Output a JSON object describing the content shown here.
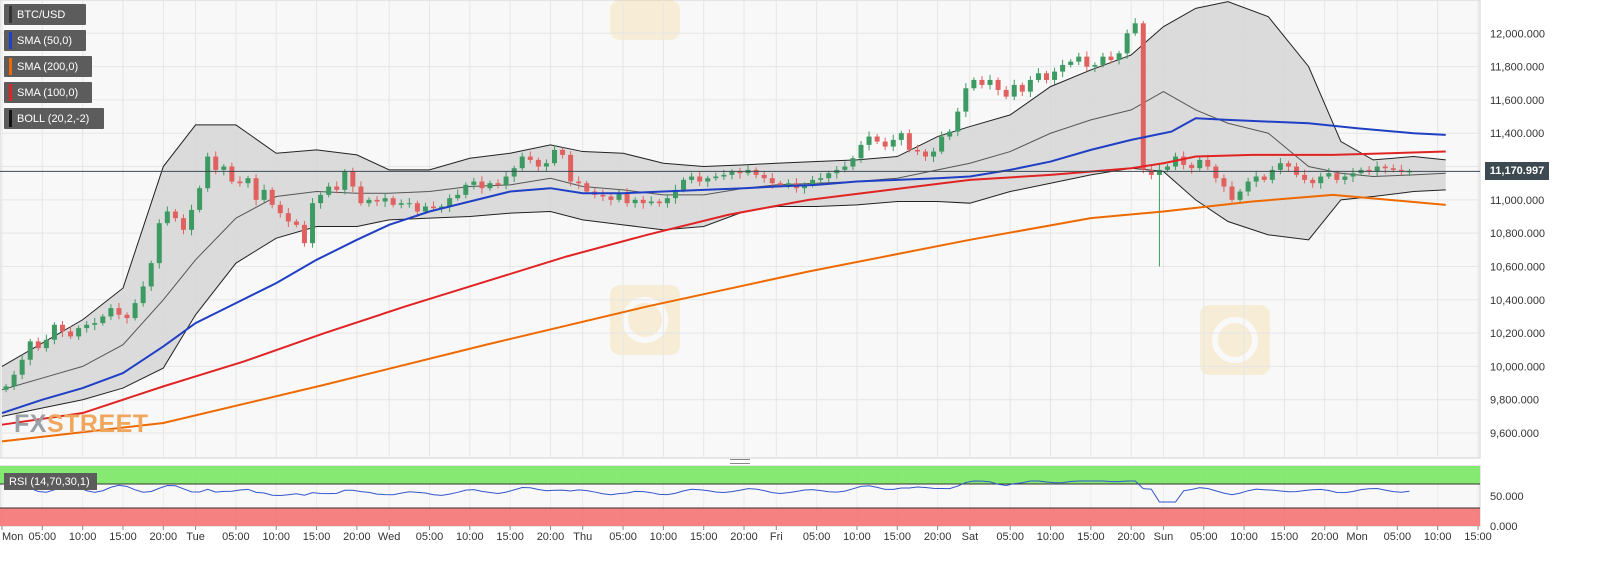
{
  "chart_data": {
    "type": "candlestick",
    "symbol": "BTC/USD",
    "last_price": "11,170.997",
    "y_axis": {
      "range": [
        9450000,
        12200000
      ],
      "ticks": [
        9600000,
        9800000,
        10000000,
        10200000,
        10400000,
        10600000,
        10800000,
        11000000,
        11200000,
        11400000,
        11600000,
        11800000,
        12000000
      ],
      "tick_labels": [
        "9,600.000",
        "9,800.000",
        "10,000.000",
        "10,200.000",
        "10,400.000",
        "10,600.000",
        "10,800.000",
        "11,000.000",
        "11,200.000",
        "11,400.000",
        "11,600.000",
        "11,800.000",
        "12,000.000"
      ]
    },
    "x_axis": {
      "hours_span": [
        0,
        178
      ],
      "tick_labels": [
        "Mon",
        "05:00",
        "10:00",
        "15:00",
        "20:00",
        "Tue",
        "05:00",
        "10:00",
        "15:00",
        "20:00",
        "Wed",
        "05:00",
        "10:00",
        "15:00",
        "20:00",
        "Thu",
        "05:00",
        "10:00",
        "15:00",
        "20:00",
        "Fri",
        "05:00",
        "10:00",
        "15:00",
        "20:00",
        "Sat",
        "05:00",
        "10:00",
        "15:00",
        "20:00",
        "Sun",
        "05:00",
        "10:00",
        "15:00",
        "20:00",
        "Mon",
        "05:00",
        "10:00",
        "15:00"
      ],
      "tick_hours": [
        0,
        5,
        10,
        15,
        20,
        24,
        29,
        34,
        39,
        44,
        48,
        53,
        58,
        63,
        68,
        72,
        77,
        82,
        87,
        92,
        96,
        101,
        106,
        111,
        116,
        120,
        125,
        130,
        135,
        140,
        144,
        149,
        154,
        159,
        164,
        168,
        173,
        178,
        183
      ]
    },
    "legend": [
      "BTC/USD",
      "SMA (50,0)",
      "SMA (200,0)",
      "SMA (100,0)",
      "BOLL (20,2,-2)"
    ],
    "series": [
      {
        "name": "SMA (50,0)",
        "color": "#1f3fc4",
        "points": [
          [
            0,
            9720000
          ],
          [
            5,
            9800000
          ],
          [
            10,
            9870000
          ],
          [
            15,
            9960000
          ],
          [
            20,
            10120000
          ],
          [
            24,
            10260000
          ],
          [
            29,
            10380000
          ],
          [
            34,
            10500000
          ],
          [
            39,
            10640000
          ],
          [
            44,
            10760000
          ],
          [
            48,
            10850000
          ],
          [
            53,
            10930000
          ],
          [
            58,
            10990000
          ],
          [
            63,
            11050000
          ],
          [
            68,
            11070000
          ],
          [
            72,
            11040000
          ],
          [
            77,
            11040000
          ],
          [
            82,
            11050000
          ],
          [
            87,
            11060000
          ],
          [
            92,
            11070000
          ],
          [
            96,
            11080000
          ],
          [
            101,
            11090000
          ],
          [
            106,
            11110000
          ],
          [
            111,
            11120000
          ],
          [
            116,
            11130000
          ],
          [
            120,
            11140000
          ],
          [
            125,
            11180000
          ],
          [
            130,
            11230000
          ],
          [
            135,
            11300000
          ],
          [
            140,
            11360000
          ],
          [
            145,
            11410000
          ],
          [
            148,
            11490000
          ],
          [
            152,
            11480000
          ],
          [
            157,
            11470000
          ],
          [
            162,
            11460000
          ],
          [
            168,
            11430000
          ],
          [
            175,
            11400000
          ],
          [
            179,
            11390000
          ]
        ]
      },
      {
        "name": "SMA (100,0)",
        "color": "#e02424",
        "points": [
          [
            0,
            9650000
          ],
          [
            10,
            9720000
          ],
          [
            20,
            9880000
          ],
          [
            30,
            10030000
          ],
          [
            40,
            10200000
          ],
          [
            50,
            10360000
          ],
          [
            60,
            10510000
          ],
          [
            70,
            10660000
          ],
          [
            80,
            10790000
          ],
          [
            90,
            10910000
          ],
          [
            100,
            11000000
          ],
          [
            110,
            11060000
          ],
          [
            120,
            11120000
          ],
          [
            130,
            11150000
          ],
          [
            140,
            11190000
          ],
          [
            144,
            11220000
          ],
          [
            148,
            11260000
          ],
          [
            155,
            11270000
          ],
          [
            165,
            11270000
          ],
          [
            179,
            11290000
          ]
        ]
      },
      {
        "name": "SMA (200,0)",
        "color": "#ee6a00",
        "points": [
          [
            0,
            9550000
          ],
          [
            20,
            9660000
          ],
          [
            40,
            9890000
          ],
          [
            60,
            10130000
          ],
          [
            80,
            10360000
          ],
          [
            100,
            10570000
          ],
          [
            120,
            10760000
          ],
          [
            135,
            10890000
          ],
          [
            144,
            10930000
          ],
          [
            155,
            10990000
          ],
          [
            165,
            11030000
          ],
          [
            179,
            10970000
          ]
        ]
      }
    ],
    "bollinger": {
      "name": "BOLL (20,2,-2)",
      "upper": [
        [
          0,
          10000000
        ],
        [
          5,
          10140000
        ],
        [
          10,
          10280000
        ],
        [
          15,
          10470000
        ],
        [
          20,
          11200000
        ],
        [
          24,
          11450000
        ],
        [
          29,
          11450000
        ],
        [
          34,
          11280000
        ],
        [
          39,
          11300000
        ],
        [
          44,
          11270000
        ],
        [
          48,
          11180000
        ],
        [
          53,
          11180000
        ],
        [
          58,
          11250000
        ],
        [
          63,
          11280000
        ],
        [
          68,
          11330000
        ],
        [
          72,
          11290000
        ],
        [
          77,
          11280000
        ],
        [
          82,
          11220000
        ],
        [
          87,
          11200000
        ],
        [
          92,
          11210000
        ],
        [
          96,
          11220000
        ],
        [
          101,
          11230000
        ],
        [
          106,
          11240000
        ],
        [
          111,
          11260000
        ],
        [
          116,
          11380000
        ],
        [
          120,
          11440000
        ],
        [
          125,
          11510000
        ],
        [
          130,
          11680000
        ],
        [
          135,
          11780000
        ],
        [
          140,
          11870000
        ],
        [
          144,
          12040000
        ],
        [
          148,
          12150000
        ],
        [
          152,
          12190000
        ],
        [
          157,
          12100000
        ],
        [
          162,
          11800000
        ],
        [
          166,
          11350000
        ],
        [
          170,
          11240000
        ],
        [
          175,
          11260000
        ],
        [
          179,
          11240000
        ]
      ],
      "lower": [
        [
          0,
          9700000
        ],
        [
          5,
          9750000
        ],
        [
          10,
          9800000
        ],
        [
          15,
          9870000
        ],
        [
          20,
          9990000
        ],
        [
          24,
          10310000
        ],
        [
          29,
          10620000
        ],
        [
          34,
          10770000
        ],
        [
          39,
          10840000
        ],
        [
          44,
          10840000
        ],
        [
          48,
          10880000
        ],
        [
          53,
          10890000
        ],
        [
          58,
          10900000
        ],
        [
          63,
          10920000
        ],
        [
          68,
          10930000
        ],
        [
          72,
          10880000
        ],
        [
          77,
          10850000
        ],
        [
          82,
          10820000
        ],
        [
          87,
          10840000
        ],
        [
          92,
          10930000
        ],
        [
          96,
          10960000
        ],
        [
          101,
          10960000
        ],
        [
          106,
          10970000
        ],
        [
          111,
          10990000
        ],
        [
          116,
          10990000
        ],
        [
          120,
          10980000
        ],
        [
          125,
          11050000
        ],
        [
          130,
          11100000
        ],
        [
          135,
          11150000
        ],
        [
          140,
          11190000
        ],
        [
          144,
          11170000
        ],
        [
          148,
          11000000
        ],
        [
          152,
          10870000
        ],
        [
          157,
          10790000
        ],
        [
          162,
          10760000
        ],
        [
          166,
          11000000
        ],
        [
          170,
          11020000
        ],
        [
          175,
          11050000
        ],
        [
          179,
          11060000
        ]
      ],
      "middle": [
        [
          0,
          9860000
        ],
        [
          5,
          9930000
        ],
        [
          10,
          10000000
        ],
        [
          15,
          10130000
        ],
        [
          20,
          10400000
        ],
        [
          24,
          10640000
        ],
        [
          29,
          10890000
        ],
        [
          34,
          11020000
        ],
        [
          39,
          11050000
        ],
        [
          44,
          11040000
        ],
        [
          48,
          11040000
        ],
        [
          53,
          11050000
        ],
        [
          58,
          11080000
        ],
        [
          63,
          11090000
        ],
        [
          68,
          11130000
        ],
        [
          72,
          11080000
        ],
        [
          77,
          11060000
        ],
        [
          82,
          11030000
        ],
        [
          87,
          11030000
        ],
        [
          92,
          11070000
        ],
        [
          96,
          11090000
        ],
        [
          101,
          11100000
        ],
        [
          106,
          11110000
        ],
        [
          111,
          11130000
        ],
        [
          116,
          11180000
        ],
        [
          120,
          11220000
        ],
        [
          125,
          11290000
        ],
        [
          130,
          11400000
        ],
        [
          135,
          11480000
        ],
        [
          140,
          11540000
        ],
        [
          144,
          11650000
        ],
        [
          148,
          11540000
        ],
        [
          152,
          11460000
        ],
        [
          157,
          11400000
        ],
        [
          162,
          11200000
        ],
        [
          166,
          11160000
        ],
        [
          170,
          11140000
        ],
        [
          175,
          11150000
        ],
        [
          179,
          11160000
        ]
      ]
    },
    "candles_hourly_close": [
      9880000,
      9950000,
      10040000,
      10150000,
      10110000,
      10160000,
      10250000,
      10210000,
      10180000,
      10230000,
      10250000,
      10260000,
      10300000,
      10350000,
      10310000,
      10290000,
      10380000,
      10480000,
      10620000,
      10860000,
      10930000,
      10890000,
      10820000,
      10940000,
      11070000,
      11260000,
      11180000,
      11200000,
      11110000,
      11100000,
      11130000,
      11000000,
      11060000,
      10970000,
      10920000,
      10870000,
      10850000,
      10740000,
      10980000,
      11030000,
      11080000,
      11060000,
      11170000,
      11080000,
      10980000,
      11000000,
      10990000,
      11010000,
      10970000,
      10980000,
      10980000,
      10930000,
      10960000,
      10950000,
      10960000,
      11010000,
      11030000,
      11090000,
      11110000,
      11070000,
      11100000,
      11090000,
      11140000,
      11190000,
      11260000,
      11240000,
      11200000,
      11220000,
      11300000,
      11270000,
      11110000,
      11100000,
      11050000,
      11030000,
      11020000,
      11000000,
      11040000,
      10980000,
      11000000,
      10980000,
      10990000,
      10980000,
      11010000,
      11060000,
      11120000,
      11140000,
      11110000,
      11130000,
      11140000,
      11150000,
      11170000,
      11160000,
      11180000,
      11150000,
      11130000,
      11100000,
      11090000,
      11100000,
      11070000,
      11090000,
      11120000,
      11130000,
      11160000,
      11180000,
      11200000,
      11250000,
      11330000,
      11380000,
      11350000,
      11320000,
      11360000,
      11400000,
      11300000,
      11290000,
      11260000,
      11290000,
      11380000,
      11410000,
      11530000,
      11670000,
      11720000,
      11690000,
      11720000,
      11660000,
      11620000,
      11690000,
      11650000,
      11720000,
      11760000,
      11720000,
      11770000,
      11810000,
      11830000,
      11860000,
      11800000,
      11810000,
      11860000,
      11840000,
      11880000,
      12000000,
      12060000,
      11180000,
      11150000,
      11180000,
      11200000,
      11260000,
      11210000,
      11190000,
      11240000,
      11200000,
      11130000,
      11080000,
      11000000,
      11050000,
      11110000,
      11140000,
      11120000,
      11180000,
      11220000,
      11200000,
      11150000,
      11120000,
      11100000,
      11140000,
      11160000,
      11120000,
      11140000,
      11160000,
      11180000,
      11170000,
      11200000,
      11190000,
      11180000,
      11170000,
      11171000
    ],
    "rsi": {
      "label": "RSI (14,70,30,1)",
      "y_ticks": [
        50,
        0
      ],
      "y_tick_labels": [
        "50.000",
        "0.000"
      ],
      "levels": [
        70,
        30
      ]
    }
  }
}
